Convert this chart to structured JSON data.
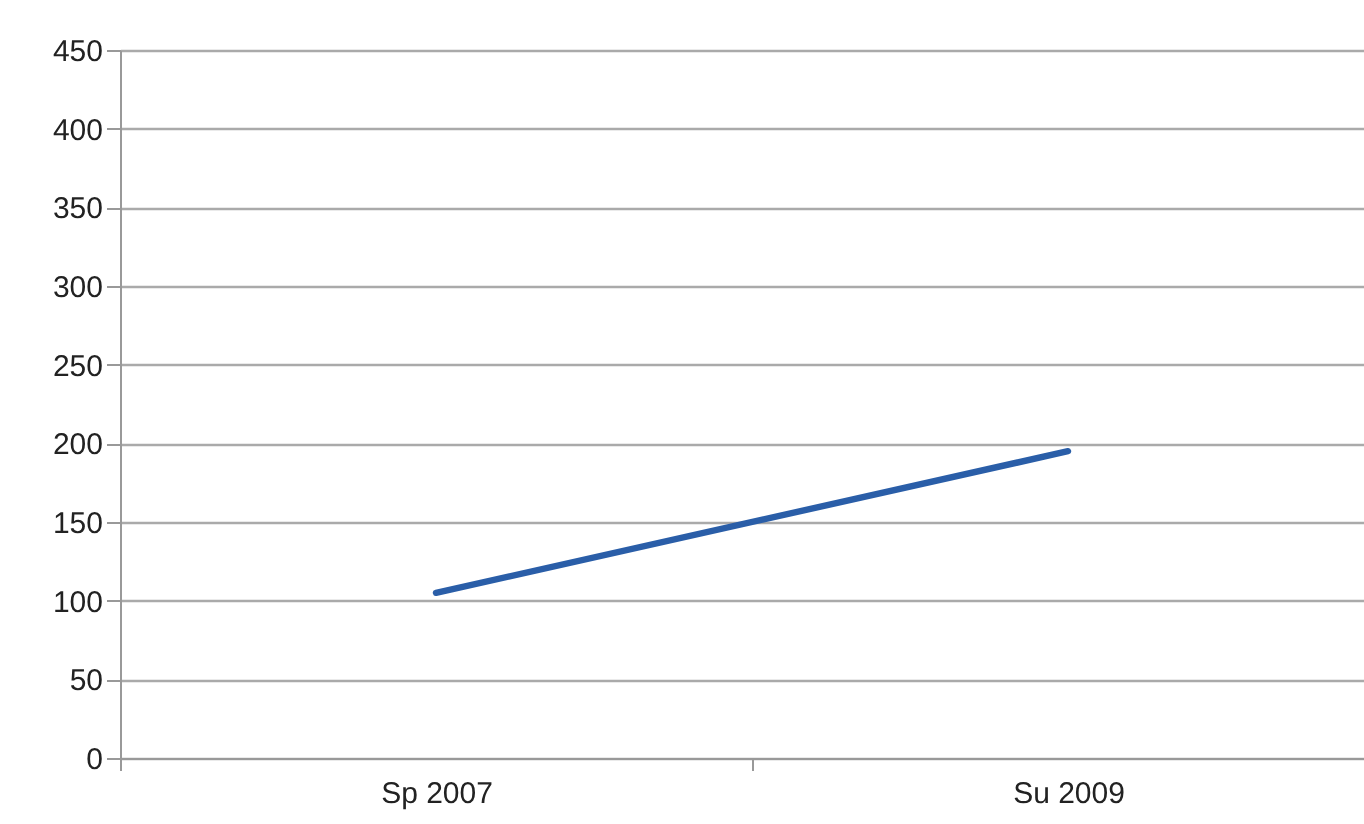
{
  "chart_data": {
    "type": "line",
    "categories": [
      "Sp 2007",
      "Su 2009"
    ],
    "series": [
      {
        "color": "#2a5ea8",
        "values": [
          105,
          195
        ]
      }
    ],
    "ylim": [
      0,
      450
    ],
    "yticks": [
      0,
      50,
      100,
      150,
      200,
      250,
      300,
      350,
      400,
      450
    ],
    "grid": "y",
    "legend": false,
    "marker": "none",
    "line_style": "solid"
  }
}
